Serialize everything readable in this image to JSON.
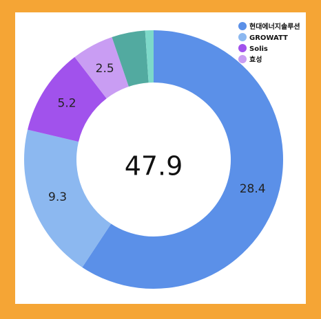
{
  "chart_data": {
    "type": "donut",
    "categories": [
      "현대에너지솔루션",
      "GROWATT",
      "Solis",
      "효성",
      null,
      null
    ],
    "values": [
      28.4,
      9.3,
      5.2,
      2.5,
      2.0,
      0.5
    ],
    "colors": [
      "#5b90e8",
      "#8cb8f0",
      "#a152ec",
      "#c99df3",
      "#52aaa0",
      "#7dd9c9"
    ],
    "total": 47.9,
    "legend": "top-right"
  }
}
